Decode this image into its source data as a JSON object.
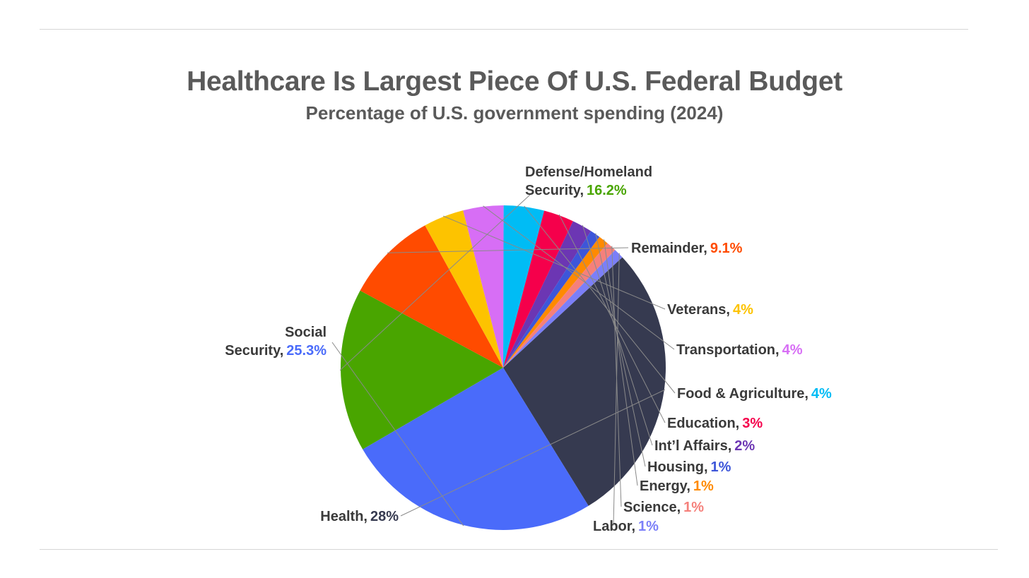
{
  "header": {
    "title": "Healthcare Is Largest Piece Of U.S. Federal Budget",
    "subtitle": "Percentage of U.S. government spending (2024)"
  },
  "chart_data": {
    "type": "pie",
    "title": "Healthcare Is Largest Piece Of U.S. Federal Budget",
    "subtitle": "Percentage of U.S. government spending (2024)",
    "unit": "%",
    "slices": [
      {
        "label": "Defense/Homeland Security",
        "label_lines": [
          "Defense/Homeland",
          "Security,"
        ],
        "value": 16.2,
        "value_text": "16.2%",
        "color": "#49a500"
      },
      {
        "label": "Remainder",
        "label_lines": [
          "Remainder,"
        ],
        "value": 9.1,
        "value_text": "9.1%",
        "color": "#ff4b00"
      },
      {
        "label": "Veterans",
        "label_lines": [
          "Veterans,"
        ],
        "value": 4,
        "value_text": "4%",
        "color": "#fdc300"
      },
      {
        "label": "Transportation",
        "label_lines": [
          "Transportation,"
        ],
        "value": 4,
        "value_text": "4%",
        "color": "#d76ef5"
      },
      {
        "label": "Food & Agriculture",
        "label_lines": [
          "Food & Agriculture,"
        ],
        "value": 4,
        "value_text": "4%",
        "color": "#00bcf5"
      },
      {
        "label": "Education",
        "label_lines": [
          "Education,"
        ],
        "value": 3,
        "value_text": "3%",
        "color": "#f5004b"
      },
      {
        "label": "Int’l Affairs",
        "label_lines": [
          "Int’l Affairs,"
        ],
        "value": 2,
        "value_text": "2%",
        "color": "#6c36b3"
      },
      {
        "label": "Housing",
        "label_lines": [
          "Housing,"
        ],
        "value": 1,
        "value_text": "1%",
        "color": "#3d56d9"
      },
      {
        "label": "Energy",
        "label_lines": [
          "Energy,"
        ],
        "value": 1,
        "value_text": "1%",
        "color": "#ff8a00"
      },
      {
        "label": "Science",
        "label_lines": [
          "Science,"
        ],
        "value": 1,
        "value_text": "1%",
        "color": "#f5807b"
      },
      {
        "label": "Labor",
        "label_lines": [
          "Labor,"
        ],
        "value": 1,
        "value_text": "1%",
        "color": "#7b7ff8"
      },
      {
        "label": "Health",
        "label_lines": [
          "Health,"
        ],
        "value": 28,
        "value_text": "28%",
        "color": "#363a50"
      },
      {
        "label": "Social Security",
        "label_lines": [
          "Social",
          "Security,"
        ],
        "value": 25.3,
        "value_text": "25.3%",
        "color": "#4a6bfa"
      }
    ]
  }
}
